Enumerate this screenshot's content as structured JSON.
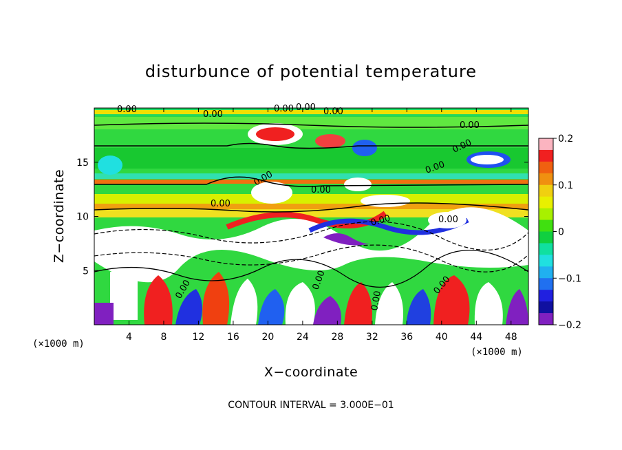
{
  "chart_data": {
    "type": "heatmap",
    "title": "disturbunce of potential temperature",
    "xlabel": "X−coordinate",
    "ylabel": "Z−coordinate",
    "x_unit_left": "(×1000 m)",
    "x_unit_right": "(×1000 m)",
    "xlim": [
      0,
      50
    ],
    "ylim": [
      0,
      20
    ],
    "x_ticks": [
      4,
      8,
      12,
      16,
      20,
      24,
      28,
      32,
      36,
      40,
      44,
      48
    ],
    "y_ticks": [
      5,
      10,
      15
    ],
    "colorbar": {
      "range": [
        -0.2,
        0.2
      ],
      "ticks": [
        0.2,
        0.1,
        0,
        -0.1,
        -0.2
      ],
      "tick_labels": [
        "0.2",
        "0.1",
        "0",
        "−0.1",
        "−0.2"
      ],
      "colors": [
        "#fbb4c0",
        "#f02020",
        "#f06010",
        "#f09010",
        "#f0d010",
        "#e8f000",
        "#a8f000",
        "#40e010",
        "#10d040",
        "#10e0a0",
        "#20e0e0",
        "#20b0f0",
        "#2070f0",
        "#2020e0",
        "#1010a0",
        "#8020c0"
      ]
    },
    "contour_labels": [
      "0.00",
      "0.00",
      "0.00",
      "0.00",
      "0.00",
      "0.00",
      "0.00",
      "0.00",
      "0.00",
      "0.00",
      "0.00",
      "0.00",
      "0.00",
      "0.00",
      "0.00",
      "0.00",
      "0.00"
    ],
    "contour_interval": "CONTOUR INTERVAL =  3.000E−01"
  }
}
